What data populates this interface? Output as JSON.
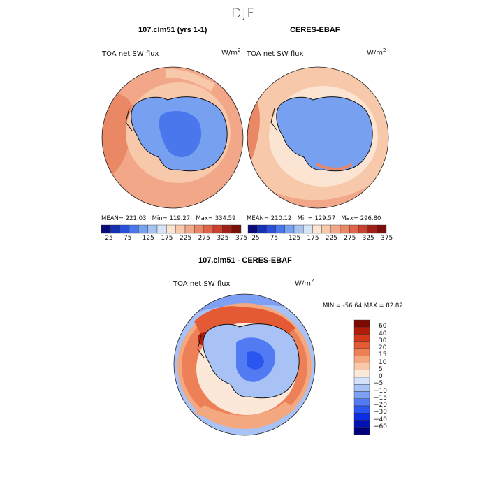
{
  "figure": {
    "title": "DJF"
  },
  "panel_top_left": {
    "title": "107.clm51 (yrs 1-1)",
    "variable": "TOA net SW flux",
    "units": "W/m",
    "units_sup": "2",
    "stats": {
      "mean": "MEAN= 221.03",
      "min": "Min= 119.27",
      "max": "Max= 334.59"
    }
  },
  "panel_top_right": {
    "title": "CERES-EBAF",
    "variable": "TOA net SW flux",
    "units": "W/m",
    "units_sup": "2",
    "stats": {
      "mean": "MEAN= 210.12",
      "min": "Min= 129.57",
      "max": "Max= 296.80"
    }
  },
  "panel_bottom": {
    "title": "107.clm51 - CERES-EBAF",
    "variable": "TOA net SW flux",
    "units": "W/m",
    "units_sup": "2",
    "minmax": "MIN = -56.64 MAX =  82.82"
  },
  "colors": {
    "abs_levels": [
      "#0a0a78",
      "#1430b4",
      "#2850dc",
      "#4a78ec",
      "#78a0f0",
      "#a6c2f2",
      "#d6e4f8",
      "#fbe4d2",
      "#f8c8aa",
      "#f2a888",
      "#ea8866",
      "#e06448",
      "#cc4030",
      "#a02018",
      "#78100c"
    ],
    "diff_levels": [
      "#00007a",
      "#0012b4",
      "#0a2ee6",
      "#2a56f0",
      "#527af2",
      "#7ea0f4",
      "#a8c2f6",
      "#d4e2fa",
      "#fbe8d8",
      "#f8c8a8",
      "#f4a880",
      "#ee8058",
      "#e45a34",
      "#d43818",
      "#b01c08",
      "#7a0a00"
    ]
  },
  "chart_data": [
    {
      "type": "heatmap",
      "title": "107.clm51 (yrs 1-1)",
      "description_label": "TOA net SW flux",
      "units": "W/m2",
      "mean": 221.03,
      "min": 119.27,
      "max": 334.59,
      "colorbar_ticks": [
        "25",
        "75",
        "125",
        "175",
        "225",
        "275",
        "325",
        "375"
      ],
      "levels": [
        25,
        50,
        75,
        100,
        125,
        150,
        175,
        200,
        225,
        250,
        275,
        300,
        325,
        350,
        375
      ]
    },
    {
      "type": "heatmap",
      "title": "CERES-EBAF",
      "description_label": "TOA net SW flux",
      "units": "W/m2",
      "mean": 210.12,
      "min": 129.57,
      "max": 296.8,
      "colorbar_ticks": [
        "25",
        "75",
        "125",
        "175",
        "225",
        "275",
        "325",
        "375"
      ],
      "levels": [
        25,
        50,
        75,
        100,
        125,
        150,
        175,
        200,
        225,
        250,
        275,
        300,
        325,
        350,
        375
      ]
    },
    {
      "type": "heatmap",
      "title": "107.clm51 - CERES-EBAF",
      "description_label": "TOA net SW flux",
      "units": "W/m2",
      "min": -56.64,
      "max": 82.82,
      "colorbar_ticks": [
        "60",
        "40",
        "30",
        "20",
        "15",
        "10",
        "5",
        "0",
        "-5",
        "-10",
        "-15",
        "-20",
        "-30",
        "-40",
        "-60"
      ]
    }
  ]
}
